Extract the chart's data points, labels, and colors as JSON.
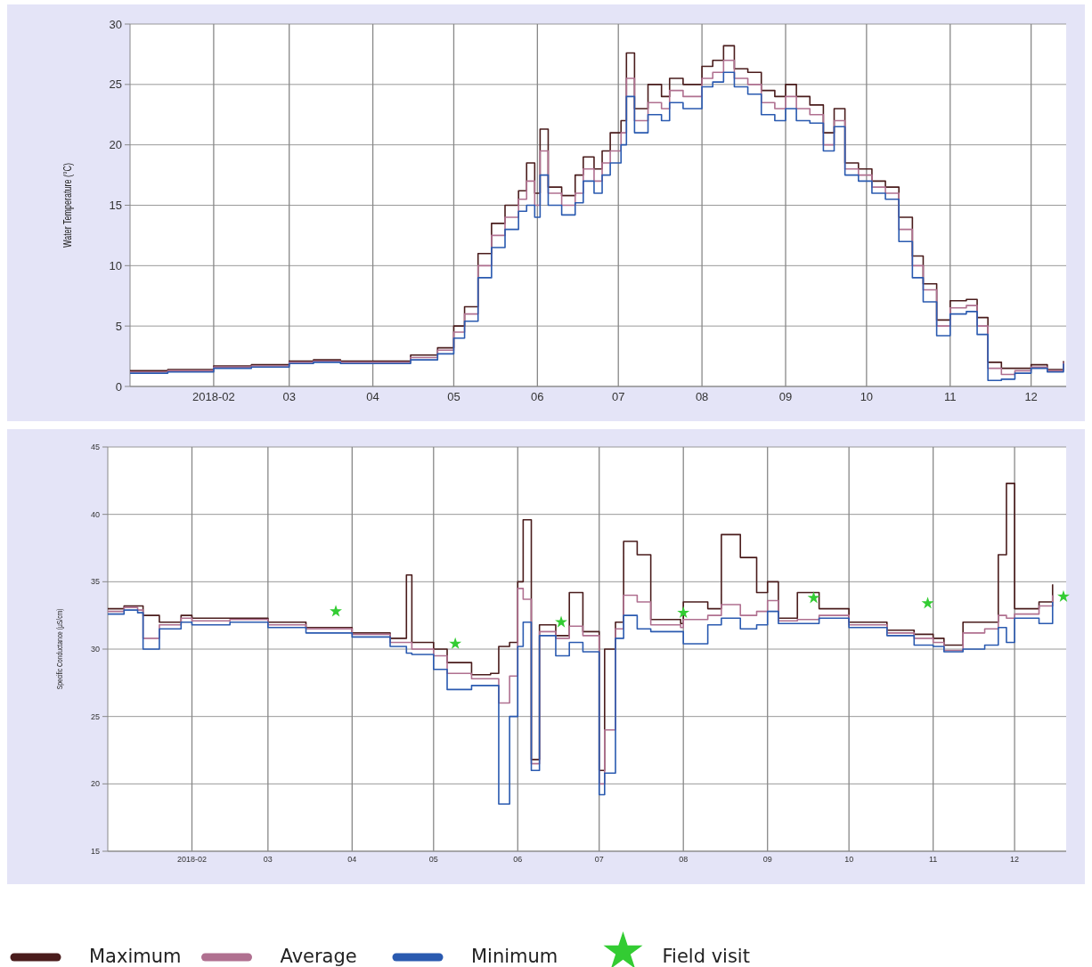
{
  "chart_data": [
    {
      "type": "step",
      "ylabel": "Water Temperature (°C)",
      "grid": true,
      "x": [
        "2018-01-01",
        "2018-01-15",
        "2018-02-01",
        "2018-02-15",
        "2018-03-01",
        "2018-03-10",
        "2018-03-20",
        "2018-04-01",
        "2018-04-15",
        "2018-04-25",
        "2018-05-01",
        "2018-05-05",
        "2018-05-10",
        "2018-05-15",
        "2018-05-20",
        "2018-05-25",
        "2018-05-28",
        "2018-05-31",
        "2018-06-02",
        "2018-06-05",
        "2018-06-10",
        "2018-06-15",
        "2018-06-18",
        "2018-06-22",
        "2018-06-25",
        "2018-06-28",
        "2018-07-02",
        "2018-07-04",
        "2018-07-07",
        "2018-07-12",
        "2018-07-17",
        "2018-07-20",
        "2018-07-25",
        "2018-08-01",
        "2018-08-05",
        "2018-08-09",
        "2018-08-13",
        "2018-08-18",
        "2018-08-23",
        "2018-08-28",
        "2018-09-01",
        "2018-09-05",
        "2018-09-10",
        "2018-09-15",
        "2018-09-19",
        "2018-09-23",
        "2018-09-28",
        "2018-10-03",
        "2018-10-08",
        "2018-10-13",
        "2018-10-18",
        "2018-10-22",
        "2018-10-27",
        "2018-11-01",
        "2018-11-07",
        "2018-11-11",
        "2018-11-15",
        "2018-11-20",
        "2018-11-25",
        "2018-12-01",
        "2018-12-07",
        "2018-12-13"
      ],
      "series": [
        {
          "color": "#4a1c1c",
          "values": [
            1.3,
            1.4,
            1.7,
            1.8,
            2.1,
            2.2,
            2.1,
            2.1,
            2.6,
            3.2,
            5,
            6.6,
            11,
            13.5,
            15,
            16.2,
            18.5,
            16,
            21.3,
            16.5,
            15.8,
            17.5,
            19,
            18,
            19.5,
            21,
            22,
            27.6,
            23,
            25,
            24,
            25.5,
            25,
            26.5,
            27,
            28.2,
            26.3,
            26,
            24.5,
            24,
            25,
            24,
            23.3,
            21,
            23,
            18.5,
            18,
            17,
            16.5,
            14,
            10.8,
            8.5,
            5.5,
            7.1,
            7.2,
            5.7,
            2,
            1.5,
            1.5,
            1.8,
            1.4,
            2.1
          ]
        },
        {
          "color": "#b07090",
          "values": [
            1.2,
            1.3,
            1.6,
            1.7,
            2.0,
            2.1,
            2.0,
            2.0,
            2.4,
            3.0,
            4.5,
            6,
            10,
            12.5,
            14,
            15.5,
            17,
            15,
            19.5,
            16,
            15,
            16,
            18,
            17,
            18.5,
            19.5,
            21,
            25.5,
            22,
            23.5,
            23,
            24.5,
            24,
            25.5,
            26,
            27,
            25.5,
            25,
            23.5,
            23,
            24,
            23,
            22.5,
            20,
            22,
            18,
            17.5,
            16.5,
            16,
            13,
            10,
            8,
            5,
            6.5,
            6.7,
            5,
            1.5,
            1.0,
            1.3,
            1.6,
            1.3,
            2.0
          ]
        },
        {
          "color": "#2a5ab0",
          "values": [
            1.1,
            1.2,
            1.5,
            1.6,
            1.9,
            2.0,
            1.9,
            1.9,
            2.2,
            2.7,
            4.0,
            5.4,
            9,
            11.5,
            13,
            14.5,
            15,
            14,
            17.5,
            15,
            14.2,
            15.2,
            17,
            16,
            17.5,
            18.5,
            20,
            24,
            21,
            22.5,
            22,
            23.5,
            23,
            24.8,
            25.2,
            26,
            24.8,
            24.2,
            22.5,
            22,
            23,
            22,
            21.8,
            19.5,
            21.5,
            17.5,
            17,
            16,
            15.5,
            12,
            9,
            7,
            4.2,
            6,
            6.2,
            4.3,
            0.5,
            0.6,
            1.1,
            1.5,
            1.2,
            1.9
          ]
        }
      ],
      "xlim": [
        "2018-01-01",
        "2018-12-14"
      ],
      "xticks": [
        {
          "value": "2018-02-01",
          "label": "2018-02"
        },
        {
          "value": "2018-03-01",
          "label": "03"
        },
        {
          "value": "2018-04-01",
          "label": "04"
        },
        {
          "value": "2018-05-01",
          "label": "05"
        },
        {
          "value": "2018-06-01",
          "label": "06"
        },
        {
          "value": "2018-07-01",
          "label": "07"
        },
        {
          "value": "2018-08-01",
          "label": "08"
        },
        {
          "value": "2018-09-01",
          "label": "09"
        },
        {
          "value": "2018-10-01",
          "label": "10"
        },
        {
          "value": "2018-11-01",
          "label": "11"
        },
        {
          "value": "2018-12-01",
          "label": "12"
        }
      ],
      "ylim": [
        0,
        30
      ],
      "yticks": [
        0,
        5,
        10,
        15,
        20,
        25,
        30
      ]
    },
    {
      "type": "step",
      "ylabel": "Specific Conductance (μS/cm)",
      "grid": true,
      "legend": "bottom",
      "x": [
        "2018-01-01",
        "2018-01-07",
        "2018-01-12",
        "2018-01-14",
        "2018-01-20",
        "2018-01-28",
        "2018-02-01",
        "2018-02-15",
        "2018-03-01",
        "2018-03-15",
        "2018-04-01",
        "2018-04-15",
        "2018-04-21",
        "2018-04-23",
        "2018-05-01",
        "2018-05-06",
        "2018-05-15",
        "2018-05-22",
        "2018-05-25",
        "2018-05-29",
        "2018-06-01",
        "2018-06-03",
        "2018-06-06",
        "2018-06-09",
        "2018-06-15",
        "2018-06-20",
        "2018-06-25",
        "2018-07-01",
        "2018-07-03",
        "2018-07-07",
        "2018-07-10",
        "2018-07-15",
        "2018-07-20",
        "2018-07-31",
        "2018-08-01",
        "2018-08-10",
        "2018-08-15",
        "2018-08-22",
        "2018-08-28",
        "2018-09-01",
        "2018-09-05",
        "2018-09-12",
        "2018-09-20",
        "2018-10-01",
        "2018-10-15",
        "2018-10-25",
        "2018-11-01",
        "2018-11-05",
        "2018-11-12",
        "2018-11-20",
        "2018-11-25",
        "2018-11-28",
        "2018-12-01",
        "2018-12-10",
        "2018-12-15"
      ],
      "series": [
        {
          "name": "Maximum",
          "color": "#4a1c1c",
          "values": [
            33,
            33.2,
            33.2,
            32.5,
            32,
            32.5,
            32.3,
            32.3,
            32,
            31.6,
            31.2,
            30.8,
            35.5,
            30.5,
            30,
            29,
            28.1,
            28.2,
            30.2,
            30.5,
            35,
            39.6,
            21.8,
            31.8,
            31,
            34.2,
            31.3,
            21,
            30,
            32,
            38,
            37,
            32.2,
            31.9,
            33.5,
            33,
            38.5,
            36.8,
            34.2,
            35,
            32.3,
            34.2,
            33,
            32,
            31.4,
            31.1,
            30.8,
            30.3,
            32,
            32,
            37,
            42.3,
            33,
            33.5,
            34.8
          ]
        },
        {
          "name": "Average",
          "color": "#b07090",
          "values": [
            32.8,
            33.1,
            32.9,
            30.8,
            31.8,
            32.3,
            32.1,
            32.2,
            31.8,
            31.5,
            31.1,
            30.5,
            30.5,
            30.0,
            29.5,
            28.2,
            27.8,
            27.8,
            26,
            28,
            34.5,
            33.7,
            21.5,
            31.3,
            30.8,
            31.7,
            31,
            20,
            24,
            31.5,
            34,
            33.5,
            31.8,
            31.6,
            32.2,
            32.5,
            33.3,
            32.5,
            32.8,
            33.6,
            32.1,
            32.2,
            32.5,
            31.8,
            31.2,
            30.8,
            30.5,
            29.9,
            31.2,
            31.5,
            32.5,
            32.3,
            32.6,
            33.2,
            34
          ]
        },
        {
          "name": "Minimum",
          "color": "#2a5ab0",
          "values": [
            32.6,
            32.9,
            32.7,
            30,
            31.5,
            32,
            31.8,
            32,
            31.6,
            31.2,
            30.9,
            30.2,
            29.7,
            29.6,
            28.5,
            27,
            27.3,
            27.3,
            18.5,
            25,
            30.2,
            32,
            21,
            31,
            29.5,
            30.5,
            29.8,
            19.2,
            20.8,
            30.8,
            32.5,
            31.5,
            31.3,
            31.3,
            30.4,
            31.8,
            32.3,
            31.5,
            31.8,
            32.8,
            31.9,
            31.9,
            32.3,
            31.6,
            31,
            30.3,
            30.2,
            29.8,
            30,
            30.3,
            31.6,
            30.5,
            32.3,
            31.9,
            33.5
          ]
        },
        {
          "name": "Field visit",
          "type": "scatter",
          "marker": "star",
          "color": "#33cc33",
          "x": [
            "2018-03-26",
            "2018-05-09",
            "2018-06-17",
            "2018-08-01",
            "2018-09-18",
            "2018-10-30",
            "2018-12-19"
          ],
          "values": [
            32.8,
            30.4,
            32.0,
            32.7,
            33.8,
            33.4,
            33.9
          ]
        }
      ],
      "xlim": [
        "2018-01-01",
        "2018-12-20"
      ],
      "xticks": [
        {
          "value": "2018-02-01",
          "label": "2018-02"
        },
        {
          "value": "2018-03-01",
          "label": "03"
        },
        {
          "value": "2018-04-01",
          "label": "04"
        },
        {
          "value": "2018-05-01",
          "label": "05"
        },
        {
          "value": "2018-06-01",
          "label": "06"
        },
        {
          "value": "2018-07-01",
          "label": "07"
        },
        {
          "value": "2018-08-01",
          "label": "08"
        },
        {
          "value": "2018-09-01",
          "label": "09"
        },
        {
          "value": "2018-10-01",
          "label": "10"
        },
        {
          "value": "2018-11-01",
          "label": "11"
        },
        {
          "value": "2018-12-01",
          "label": "12"
        }
      ],
      "ylim": [
        15,
        45
      ],
      "yticks": [
        15,
        20,
        25,
        30,
        35,
        40,
        45
      ]
    }
  ]
}
